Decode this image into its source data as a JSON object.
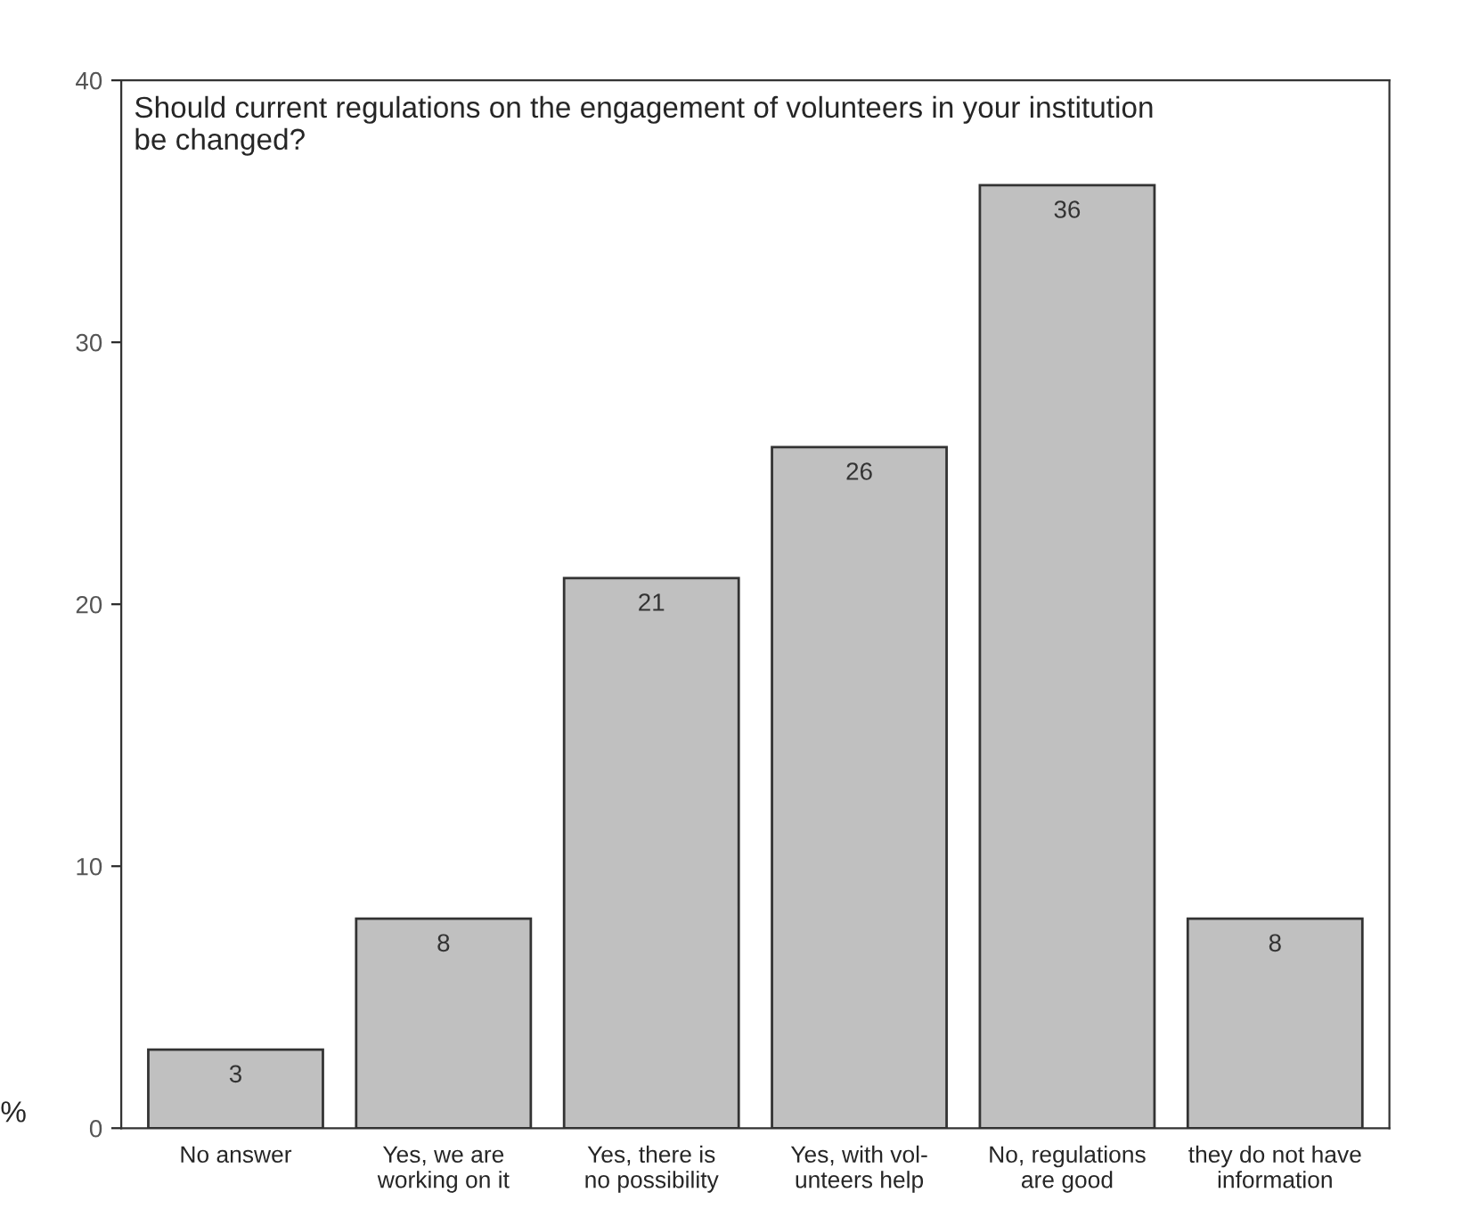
{
  "chart_data": {
    "type": "bar",
    "title": "Should current regulations on the engagement of volunteers in your institution\nbe changed?",
    "ylabel": "%",
    "categories": [
      "No answer",
      "Yes, we are\nworking on it",
      "Yes, there is\nno possibility",
      "Yes, with vol-\nunteers help",
      "No, regulations\nare good",
      "they do not have\ninformation"
    ],
    "values": [
      3,
      8,
      21,
      26,
      36,
      8
    ],
    "color": "#c0c0c0",
    "data_labels": true,
    "ylim": [
      0,
      40
    ],
    "yticks": [
      0,
      10,
      20,
      30,
      40
    ],
    "grid": false,
    "legend": false
  }
}
